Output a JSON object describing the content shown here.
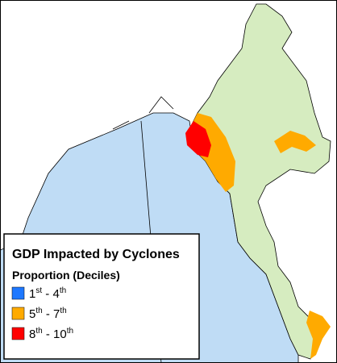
{
  "legend": {
    "title": "GDP Impacted by Cyclones",
    "subtitle": "Proportion (Deciles)",
    "items": [
      {
        "color": "#1e78ff",
        "base1": "1",
        "sup1": "st",
        "base2": " - 4",
        "sup2": "th"
      },
      {
        "color": "#ffaa00",
        "base1": "5",
        "sup1": "th",
        "base2": " - 7",
        "sup2": "th"
      },
      {
        "color": "#ff0000",
        "base1": "8",
        "sup1": "th",
        "base2": " - 10",
        "sup2": "th"
      }
    ]
  }
}
